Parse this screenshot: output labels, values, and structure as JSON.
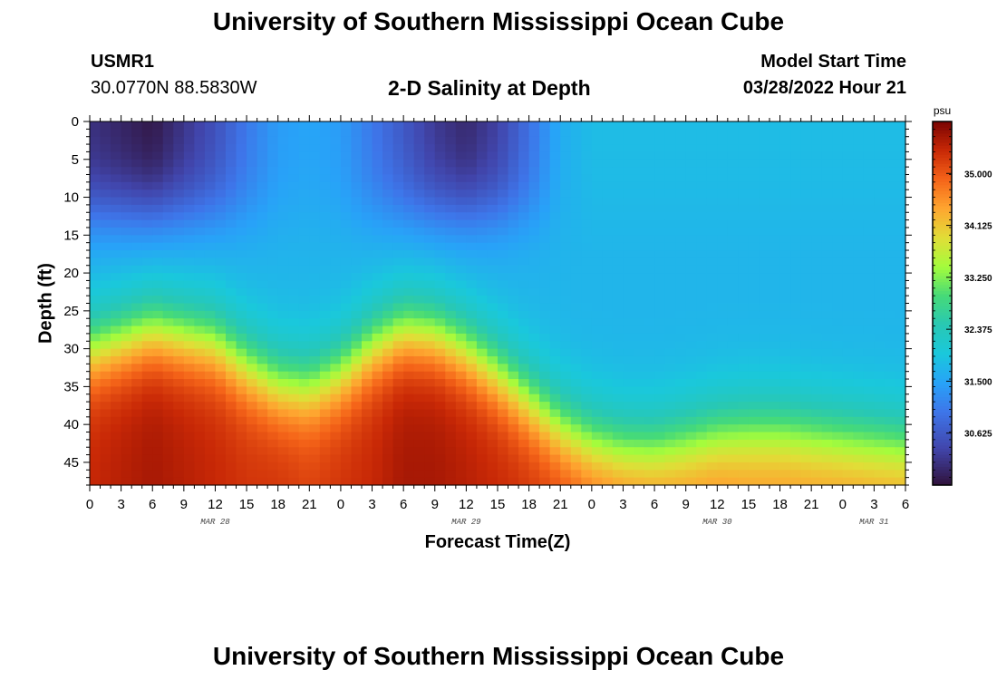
{
  "header": {
    "title": "University of Southern Mississippi Ocean Cube",
    "station_id": "USMR1",
    "station_coords": "30.0770N  88.5830W",
    "model_start_label": "Model Start Time",
    "model_start_value": "03/28/2022 Hour 21"
  },
  "footer": {
    "title": "University of Southern Mississippi Ocean Cube"
  },
  "chart_data": {
    "type": "heatmap",
    "title": "2-D Salinity at Depth",
    "xlabel": "Forecast Time(Z)",
    "ylabel": "Depth (ft)",
    "x_tick_labels": [
      "0",
      "3",
      "6",
      "9",
      "12",
      "15",
      "18",
      "21",
      "0",
      "3",
      "6",
      "9",
      "12",
      "15",
      "18",
      "21",
      "0",
      "3",
      "6",
      "9",
      "12",
      "15",
      "18",
      "21",
      "0",
      "3",
      "6"
    ],
    "date_labels": [
      {
        "label": "MAR 28",
        "x_hours": 12
      },
      {
        "label": "MAR 29",
        "x_hours": 36
      },
      {
        "label": "MAR 30",
        "x_hours": 60
      },
      {
        "label": "MAR 31",
        "x_hours": 75
      }
    ],
    "x_range_hours": [
      0,
      78
    ],
    "y_ticks": [
      0,
      5,
      10,
      15,
      20,
      25,
      30,
      35,
      40,
      45
    ],
    "y_range_ft": [
      0,
      48
    ],
    "y_inverted": true,
    "colorbar": {
      "unit": "psu",
      "range": [
        29.75,
        35.875
      ],
      "ticks": [
        "35.000",
        "34.125",
        "33.250",
        "32.375",
        "31.500",
        "30.625"
      ],
      "tick_values": [
        35.0,
        34.125,
        33.25,
        32.375,
        31.5,
        30.625
      ],
      "colormap": "turbo"
    },
    "transect": {
      "x_hours": [
        0,
        6,
        12,
        15,
        18,
        21,
        24,
        27,
        30,
        33,
        36,
        39,
        42,
        45,
        48,
        51,
        54,
        57,
        60,
        63,
        66,
        69,
        72,
        75,
        78
      ],
      "surface_salinity": [
        30.1,
        29.8,
        30.5,
        31.0,
        31.4,
        31.5,
        31.4,
        31.0,
        30.6,
        30.2,
        30.0,
        30.3,
        30.9,
        31.6,
        31.8,
        31.8,
        31.8,
        31.8,
        31.8,
        31.8,
        31.8,
        31.8,
        31.8,
        31.8,
        31.8
      ],
      "halocline_depth_ft": [
        30.0,
        27.5,
        29.0,
        32.0,
        34.5,
        35.0,
        33.0,
        29.5,
        27.5,
        28.0,
        30.0,
        33.0,
        36.5,
        40.0,
        42.0,
        43.0,
        43.0,
        42.0,
        41.0,
        40.5,
        40.5,
        41.0,
        41.5,
        42.0,
        42.5
      ],
      "bottom_salinity": [
        35.4,
        35.6,
        35.4,
        35.3,
        35.3,
        35.2,
        35.3,
        35.4,
        35.6,
        35.6,
        35.5,
        35.4,
        35.3,
        35.2,
        35.0,
        34.9,
        34.8,
        34.7,
        34.7,
        34.6,
        34.6,
        34.6,
        34.6,
        34.6,
        34.6
      ]
    }
  }
}
